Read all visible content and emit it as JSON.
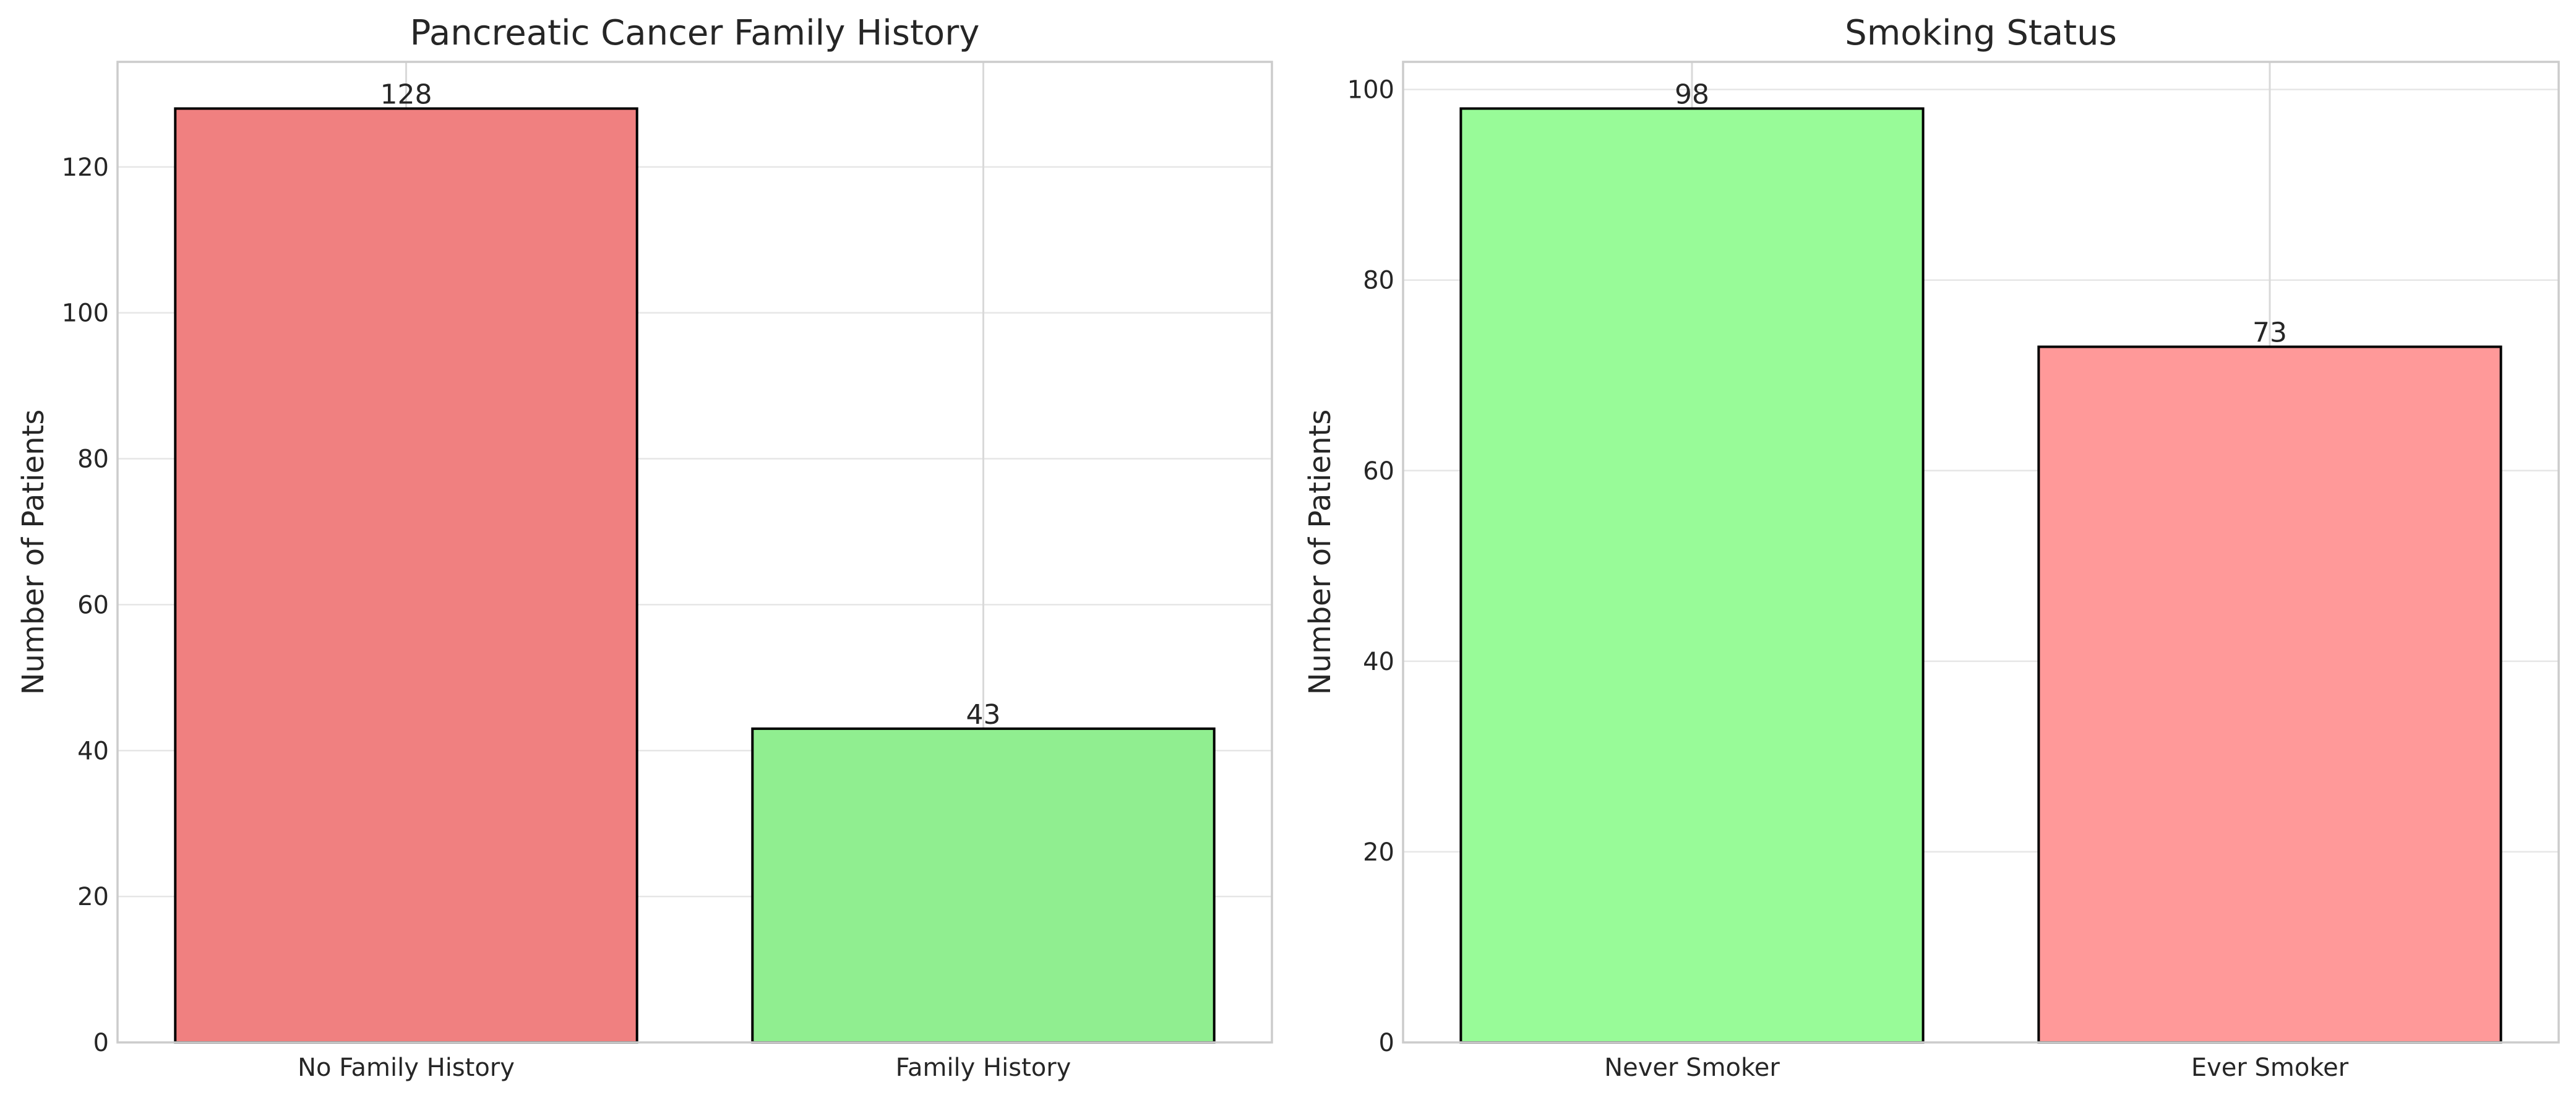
{
  "chart_data": [
    {
      "type": "bar",
      "title": "Pancreatic Cancer Family History",
      "ylabel": "Number of Patients",
      "xlabel": "",
      "categories": [
        "No Family History",
        "Family History"
      ],
      "values": [
        128,
        43
      ],
      "colors": [
        "#f08080",
        "#90ee90"
      ],
      "ylim": [
        0,
        134.4
      ],
      "yticks": [
        0,
        20,
        40,
        60,
        80,
        100,
        120
      ],
      "grid": true,
      "data_labels": true
    },
    {
      "type": "bar",
      "title": "Smoking Status",
      "ylabel": "Number of Patients",
      "xlabel": "",
      "categories": [
        "Never Smoker",
        "Ever Smoker"
      ],
      "values": [
        98,
        73
      ],
      "colors": [
        "#98fb98",
        "#ff9999"
      ],
      "ylim": [
        0,
        102.9
      ],
      "yticks": [
        0,
        20,
        40,
        60,
        80,
        100
      ],
      "grid": true,
      "data_labels": true
    }
  ]
}
